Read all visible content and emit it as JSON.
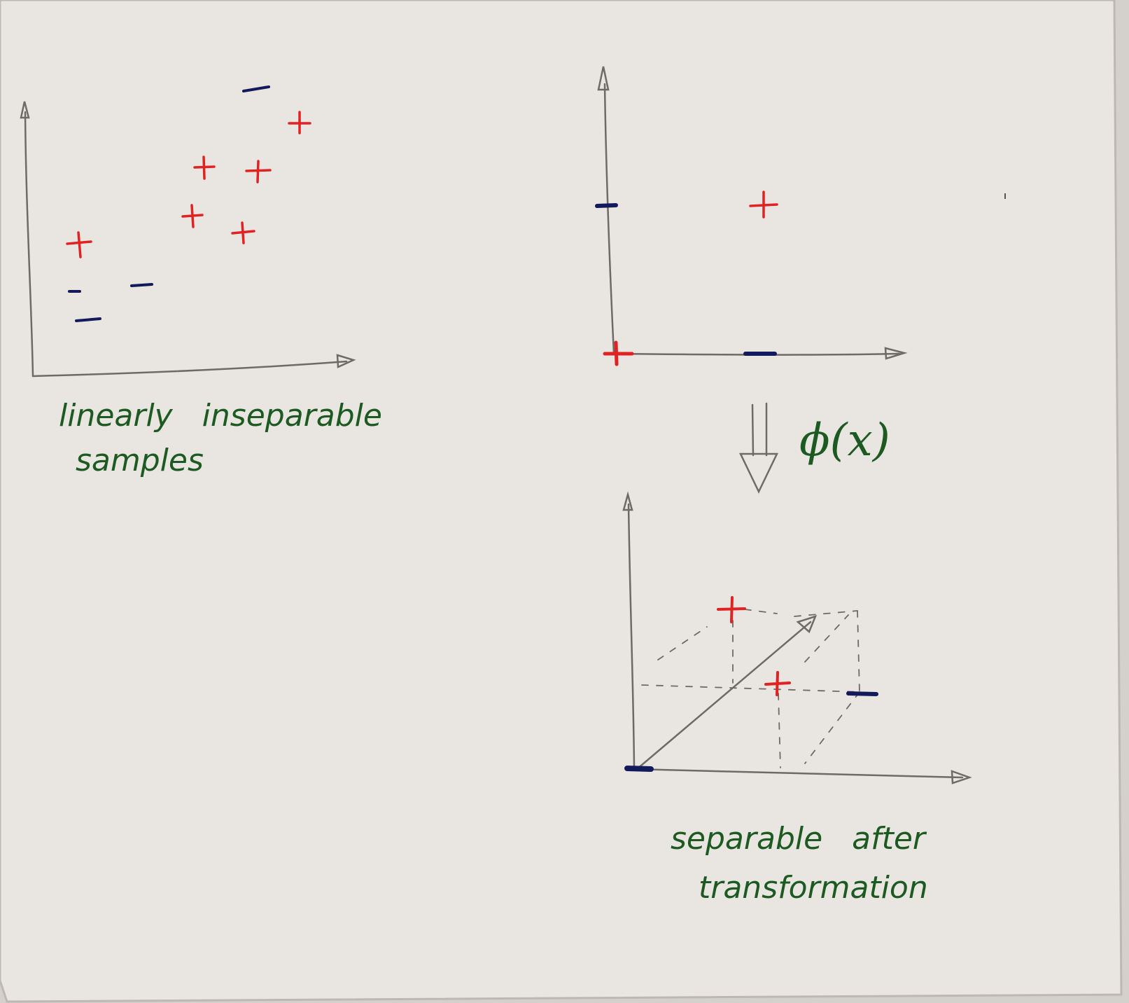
{
  "colors": {
    "paper": "#e9e6e1",
    "paper_edge": "#d2cec8",
    "ink_pencil": "#6e6a66",
    "ink_red": "#e02222",
    "ink_blue": "#121a5c",
    "ink_green": "#1d5a22"
  },
  "left_plot": {
    "caption_line1": "linearly   inseparable",
    "caption_line2": "samples",
    "marks": [
      {
        "sign": "-",
        "class": "negative"
      },
      {
        "sign": "+",
        "class": "positive"
      },
      {
        "sign": "+",
        "class": "positive"
      },
      {
        "sign": "+",
        "class": "positive"
      },
      {
        "sign": "+",
        "class": "positive"
      },
      {
        "sign": "+",
        "class": "positive"
      },
      {
        "sign": "+",
        "class": "positive"
      },
      {
        "sign": "-",
        "class": "negative"
      },
      {
        "sign": "-",
        "class": "negative"
      },
      {
        "sign": "-",
        "class": "negative"
      }
    ]
  },
  "right_top_plot": {
    "marks": [
      {
        "sign": "-",
        "class": "negative"
      },
      {
        "sign": "+",
        "class": "positive"
      },
      {
        "sign": "+",
        "class": "positive"
      },
      {
        "sign": "-",
        "class": "negative"
      }
    ]
  },
  "transform": {
    "label": "ϕ(x)",
    "arrow_icon": "double-down-arrow-icon"
  },
  "right_bottom_plot": {
    "caption_line1": "separable   after",
    "caption_line2": "transformation",
    "marks": [
      {
        "sign": "+",
        "class": "positive"
      },
      {
        "sign": "+",
        "class": "positive"
      },
      {
        "sign": "-",
        "class": "negative"
      },
      {
        "sign": "-",
        "class": "negative"
      }
    ]
  }
}
